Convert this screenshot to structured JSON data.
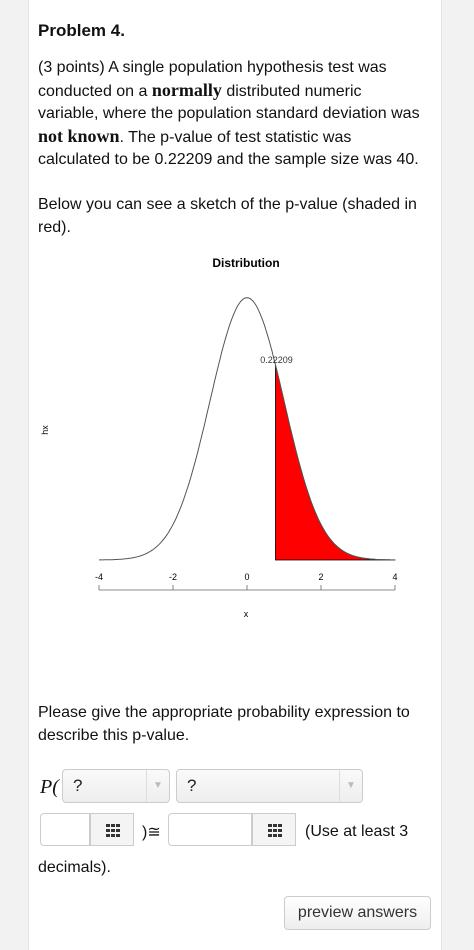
{
  "problem": {
    "title": "Problem 4.",
    "intro": [
      [
        "(3 points) A single population hypothesis test was"
      ],
      [
        "conducted on a ",
        "normally",
        " distributed numeric"
      ],
      [
        "variable, where the population standard deviation was"
      ],
      [
        "not known",
        ". The p-value of test statistic was"
      ],
      [
        "calculated to be 0.22209 and the sample size was 40."
      ]
    ],
    "sketch_text": [
      "Below you can see a sketch of the p-value (shaded in",
      "red)."
    ],
    "question": [
      "Please give the appropriate probability expression to",
      "describe this p-value."
    ],
    "form": {
      "prefix": "P(",
      "select_1": "?",
      "select_2": "?",
      "approx": ")≅",
      "hint": "(Use at least 3",
      "hint_end": "decimals).",
      "button": "preview answers"
    }
  },
  "chart_data": {
    "type": "density",
    "title": "Distribution",
    "x_label": "x",
    "y_label": "hx",
    "xlim": [
      -4,
      4
    ],
    "xticks": [
      -4,
      -2,
      0,
      2,
      4
    ],
    "ylim": [
      0,
      0.4
    ],
    "shade_from": 0.77,
    "shade_color": "#ff0000",
    "annotation": "0.22209"
  }
}
